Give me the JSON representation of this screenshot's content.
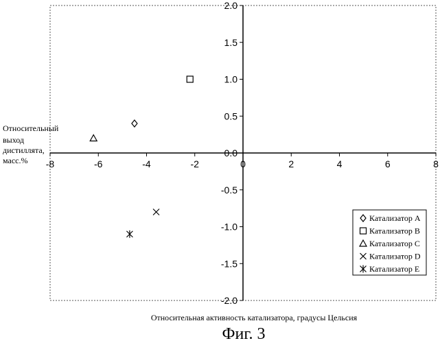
{
  "chart_data": {
    "type": "scatter",
    "xlabel": "Относительная активность катализатора, градусы Цельсия",
    "ylabel_lines": [
      "Относительный",
      "выход",
      "дистиллята,",
      "масс.%"
    ],
    "xlim": [
      -8,
      8
    ],
    "ylim": [
      -2,
      2
    ],
    "x_ticks": [
      "-8",
      "-6",
      "-4",
      "-2",
      "0",
      "2",
      "4",
      "6",
      "8"
    ],
    "y_ticks": [
      "2.0",
      "1.5",
      "1.0",
      "0.5",
      "0.0",
      "-0.5",
      "-1.0",
      "-1.5",
      "-2.0"
    ],
    "series": [
      {
        "name": "Катализатор A",
        "marker": "diamond",
        "points": [
          [
            -4.5,
            0.4
          ]
        ]
      },
      {
        "name": "Катализатор B",
        "marker": "square",
        "points": [
          [
            -2.2,
            1.0
          ]
        ]
      },
      {
        "name": "Катализатор C",
        "marker": "triangle",
        "points": [
          [
            -6.2,
            0.2
          ]
        ]
      },
      {
        "name": "Катализатор D",
        "marker": "x",
        "points": [
          [
            -3.6,
            -0.8
          ]
        ]
      },
      {
        "name": "Катализатор E",
        "marker": "star",
        "points": [
          [
            -4.7,
            -1.1
          ]
        ]
      }
    ],
    "legend_position": "bottom-right",
    "grid": false,
    "frame": "dashed"
  },
  "caption": "Фиг. 3"
}
